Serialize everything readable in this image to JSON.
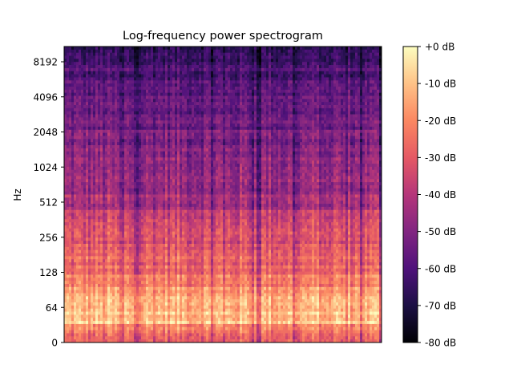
{
  "chart_data": {
    "type": "heatmap",
    "title": "Log-frequency power spectrogram",
    "xlabel": "",
    "ylabel": "Hz",
    "y_scale": "log",
    "y_ticks": [
      "0",
      "64",
      "128",
      "256",
      "512",
      "1024",
      "2048",
      "4096",
      "8192"
    ],
    "x_ticks": [],
    "colorbar": {
      "colormap": "magma",
      "range_db": [
        -80,
        0
      ],
      "ticks": [
        "+0 dB",
        "-10 dB",
        "-20 dB",
        "-30 dB",
        "-40 dB",
        "-50 dB",
        "-60 dB",
        "-70 dB",
        "-80 dB"
      ]
    },
    "approx_level_by_frequency": [
      {
        "hz": 20,
        "db": -25
      },
      {
        "hz": 32,
        "db": -20
      },
      {
        "hz": 50,
        "db": -8
      },
      {
        "hz": 64,
        "db": -12
      },
      {
        "hz": 128,
        "db": -25
      },
      {
        "hz": 256,
        "db": -33
      },
      {
        "hz": 512,
        "db": -42
      },
      {
        "hz": 1024,
        "db": -48
      },
      {
        "hz": 2048,
        "db": -52
      },
      {
        "hz": 4096,
        "db": -56
      },
      {
        "hz": 8192,
        "db": -62
      },
      {
        "hz": 11025,
        "db": -66
      }
    ],
    "grid": false,
    "legend": "colorbar-right"
  }
}
